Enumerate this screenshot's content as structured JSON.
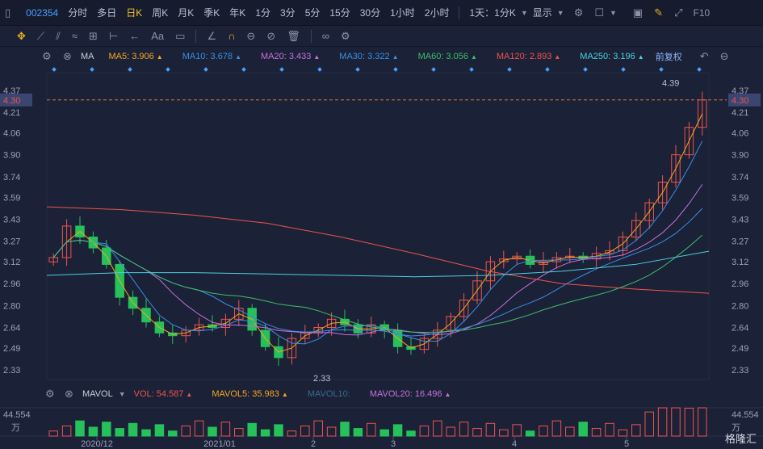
{
  "topbar": {
    "code": "002354",
    "periods": [
      "分时",
      "多日",
      "日K",
      "周K",
      "月K",
      "季K",
      "年K",
      "1分",
      "3分",
      "5分",
      "15分",
      "30分",
      "1小时",
      "2小时"
    ],
    "active_period": "日K",
    "range_select": "1天：1分K",
    "display_select": "显示",
    "f10": "F10"
  },
  "toolbar": {
    "icons": [
      "move-icon",
      "line-tool-icon",
      "channel-tool-icon",
      "wave-tool-icon",
      "trend-tool-icon",
      "measure-tool-icon",
      "arrow-tool-icon",
      "text-tool-icon",
      "note-tool-icon",
      "ruler-icon",
      "magnet-icon",
      "lock-icon",
      "hide-icon",
      "trash-icon",
      "link-icon",
      "settings-icon"
    ],
    "text_tool_label": "Aa"
  },
  "ma_bar": {
    "name": "MA",
    "items": [
      {
        "label": "MA5: 3.906",
        "color": "#f5a623"
      },
      {
        "label": "MA10: 3.678",
        "color": "#3a8ee6"
      },
      {
        "label": "MA20: 3.433",
        "color": "#c771e0"
      },
      {
        "label": "MA30: 3.322",
        "color": "#3a8ee6"
      },
      {
        "label": "MA60: 3.056",
        "color": "#3fbf6b"
      },
      {
        "label": "MA120: 2.893",
        "color": "#ef5350"
      },
      {
        "label": "MA250: 3.196",
        "color": "#4dd0e1"
      }
    ],
    "adjust": "前复权"
  },
  "vol_bar": {
    "name": "MAVOL",
    "items": [
      {
        "label": "VOL: 54.587",
        "color": "#ef5350"
      },
      {
        "label": "MAVOL5: 35.983",
        "color": "#f5a623"
      },
      {
        "label": "MAVOL10:",
        "color": "#3a6a8e"
      },
      {
        "label": "MAVOL20: 16.496",
        "color": "#c771e0"
      }
    ],
    "axis_top": "44.554",
    "axis_unit": "万"
  },
  "price_axis": {
    "ticks": [
      "4.37",
      "4.21",
      "4.06",
      "3.90",
      "3.74",
      "3.59",
      "3.43",
      "3.27",
      "3.12",
      "2.96",
      "2.80",
      "2.64",
      "2.49",
      "2.33"
    ],
    "current": "4.30",
    "max_label": "4.39",
    "min_label": "2.33"
  },
  "time_axis": [
    "2020/12",
    "2021/01",
    "2",
    "3",
    "4",
    "5"
  ],
  "watermark": "格隆汇",
  "colors": {
    "up": "#ef5350",
    "down": "#26c15a",
    "ma5": "#f5a623",
    "ma10": "#3a8ee6",
    "ma20": "#c771e0",
    "ma30": "#3a8ee6",
    "ma60": "#3fbf6b",
    "ma120": "#ef5350",
    "ma250": "#4dd0e1"
  },
  "chart_data": {
    "type": "candlestick",
    "ylim": [
      2.26,
      4.44
    ],
    "x": [
      "2020/12",
      "2021/01",
      "2",
      "3",
      "4",
      "5"
    ],
    "close_approx": [
      3.15,
      3.38,
      3.3,
      3.22,
      3.1,
      2.86,
      2.78,
      2.68,
      2.6,
      2.58,
      2.62,
      2.66,
      2.64,
      2.7,
      2.78,
      2.62,
      2.5,
      2.42,
      2.56,
      2.6,
      2.64,
      2.7,
      2.66,
      2.6,
      2.66,
      2.62,
      2.5,
      2.48,
      2.56,
      2.62,
      2.72,
      2.84,
      2.98,
      3.12,
      3.14,
      3.16,
      3.1,
      3.12,
      3.15,
      3.16,
      3.14,
      3.18,
      3.2,
      3.3,
      3.42,
      3.55,
      3.7,
      3.9,
      4.1,
      4.3
    ],
    "series": [
      {
        "name": "MA5",
        "last": 3.906
      },
      {
        "name": "MA10",
        "last": 3.678
      },
      {
        "name": "MA20",
        "last": 3.433
      },
      {
        "name": "MA30",
        "last": 3.322
      },
      {
        "name": "MA60",
        "last": 3.056
      },
      {
        "name": "MA120",
        "last": 2.893
      },
      {
        "name": "MA250",
        "last": 3.196
      }
    ],
    "volume": {
      "last": 54.587,
      "mavol5": 35.983,
      "mavol20": 16.496,
      "ymax": 44.554
    }
  }
}
